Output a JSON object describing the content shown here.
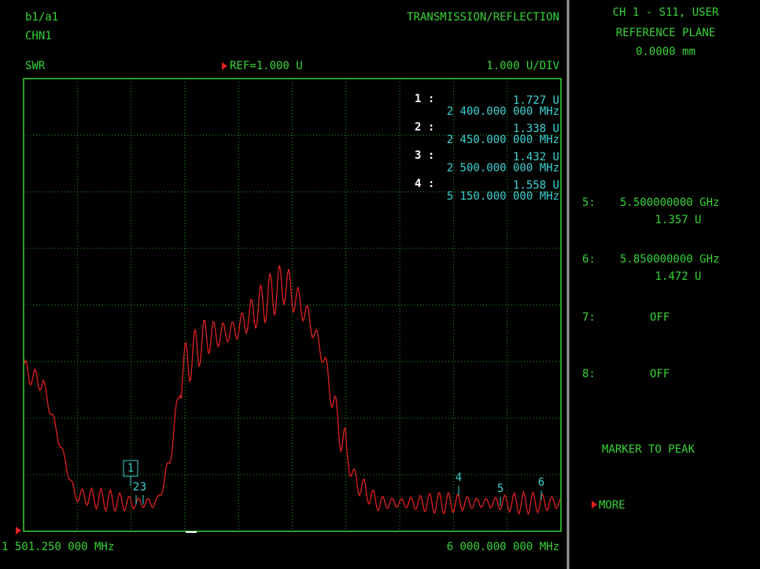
{
  "header": {
    "ratio": "b1/a1",
    "channel": "CHN1",
    "mode": "TRANSMISSION/REFLECTION",
    "format": "SWR",
    "reference": "REF=1.000 U",
    "scale": "1.000 U/DIV"
  },
  "marker_table": [
    {
      "number": "1 :",
      "value": "1.727 U",
      "frequency": "2 400.000 000 MHz"
    },
    {
      "number": "2 :",
      "value": "1.338 U",
      "frequency": "2 450.000 000 MHz"
    },
    {
      "number": "3 :",
      "value": "1.432 U",
      "frequency": "2 500.000 000 MHz"
    },
    {
      "number": "4 :",
      "value": "1.558 U",
      "frequency": "5 150.000 000 MHz"
    }
  ],
  "trace_markers": [
    "1",
    "2",
    "3",
    "4",
    "5",
    "6"
  ],
  "footer": {
    "start": "1 501.250 000 MHz",
    "stop": "6 000.000 000 MHz"
  },
  "softkeys": {
    "title": [
      "CH 1 - S11, USER",
      "REFERENCE PLANE",
      "0.0000 mm"
    ],
    "markers": [
      {
        "label": "5:",
        "frequency": "5.500000000 GHz",
        "value": "1.357 U"
      },
      {
        "label": "6:",
        "frequency": "5.850000000 GHz",
        "value": "1.472 U"
      },
      {
        "label": "7:",
        "state": "OFF"
      },
      {
        "label": "8:",
        "state": "OFF"
      }
    ],
    "actions": [
      "MARKER TO PEAK",
      "MORE"
    ]
  }
}
